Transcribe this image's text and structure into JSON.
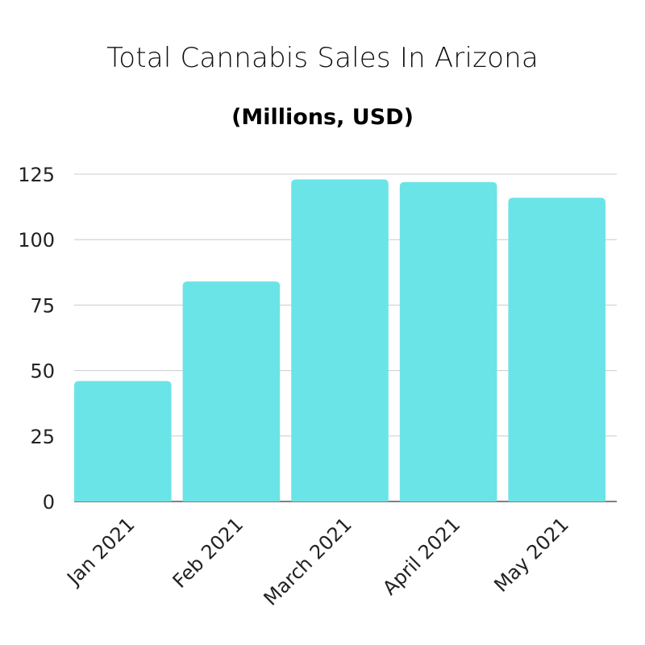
{
  "chart_data": {
    "type": "bar",
    "title": "Total Cannabis Sales In Arizona",
    "subtitle": "(Millions, USD)",
    "xlabel": "",
    "ylabel": "",
    "categories": [
      "Jan 2021",
      "Feb 2021",
      "March 2021",
      "April 2021",
      "May 2021"
    ],
    "values": [
      46,
      84,
      123,
      122,
      116
    ],
    "ylim": [
      0,
      125
    ],
    "yticks": [
      0,
      25,
      50,
      75,
      100,
      125
    ],
    "grid": true,
    "legend": "none",
    "bar_color": "#6be4e8",
    "grid_color": "#cccccc",
    "axis_color": "#555555"
  }
}
